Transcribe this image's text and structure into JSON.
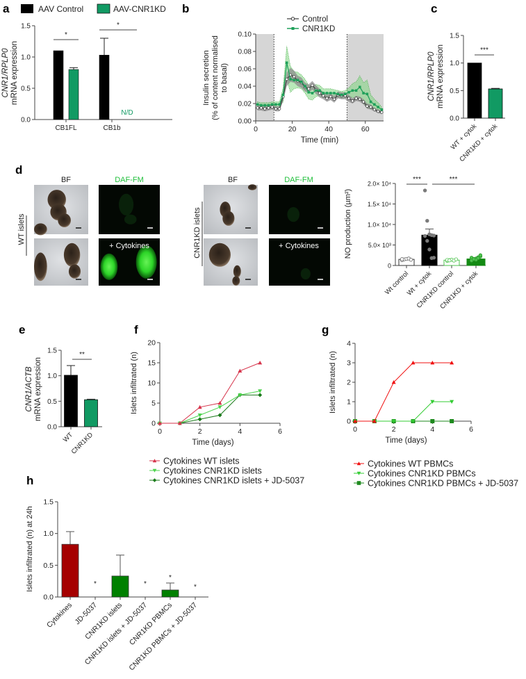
{
  "panel_labels": {
    "a": "a",
    "b": "b",
    "c": "c",
    "d": "d",
    "e": "e",
    "f": "f",
    "g": "g",
    "h": "h"
  },
  "colors": {
    "kd_green": "#119a63",
    "b_green": "#1fa05a",
    "f_red": "#d6334a",
    "f_light_green": "#4cd34c",
    "f_dark_green": "#1a7a1a",
    "g_red": "#f01010",
    "g_green": "#33cc33",
    "g_dark_green": "#1e8a1e",
    "h_red": "#a50000",
    "h_green": "#008000",
    "no_green": "#138a13",
    "no_outline_green": "#4ec34e"
  },
  "panel_d_images": {
    "bf_header": "BF",
    "daf_header": "DAF-FM",
    "treatment_label": "+ Cytokines",
    "wt_group": "WT islets",
    "kd_group": "CNR1KD islets"
  },
  "chart_data": [
    {
      "panel": "a",
      "type": "bar",
      "legend": [
        {
          "label": "AAV Control",
          "color": "#000000"
        },
        {
          "label": "AAV-CNR1KD",
          "color": "#119a63"
        }
      ],
      "ylabel_gene": "CNR1/RPLP0",
      "ylabel": "mRNA expression",
      "ylim": [
        0,
        1.5
      ],
      "yticks": [
        0,
        0.5,
        1.0,
        1.5
      ],
      "ytick_labels": [
        "0.0",
        "0.5",
        "1.0",
        "1.5"
      ],
      "categories": [
        "CB1FL",
        "CB1b"
      ],
      "series": [
        {
          "name": "AAV Control",
          "values": [
            1.1,
            1.03
          ],
          "errors": [
            0,
            0.27
          ]
        },
        {
          "name": "AAV-CNR1KD",
          "values": [
            0.8,
            null
          ],
          "errors": [
            0.03,
            null
          ]
        }
      ],
      "significance": [
        "*",
        "*"
      ],
      "not_detected_label": "N/D"
    },
    {
      "panel": "b",
      "type": "line",
      "ylabel_lines": [
        "Insulin secretion",
        "(% of content normalised",
        "to basal)"
      ],
      "xlabel": "Time (min)",
      "xlim": [
        0,
        70
      ],
      "xticks": [
        0,
        20,
        40,
        60
      ],
      "xtick_labels": [
        "0",
        "20",
        "40",
        "60"
      ],
      "ylim": [
        0,
        0.1
      ],
      "yticks": [
        0,
        0.02,
        0.04,
        0.06,
        0.08,
        0.1
      ],
      "ytick_labels": [
        "0.00",
        "0.02",
        "0.04",
        "0.06",
        "0.08",
        "0.10"
      ],
      "shaded_ranges": [
        [
          0,
          10
        ],
        [
          50,
          70
        ]
      ],
      "dotted_lines": [
        10,
        50
      ],
      "x": [
        1,
        3,
        5,
        7,
        9,
        11,
        13,
        15,
        17,
        19,
        21,
        23,
        25,
        27,
        29,
        31,
        33,
        35,
        37,
        39,
        41,
        43,
        45,
        47,
        49,
        51,
        53,
        55,
        57,
        59,
        61,
        63,
        65,
        67,
        69
      ],
      "series": [
        {
          "name": "Control",
          "values": [
            0.015,
            0.015,
            0.014,
            0.015,
            0.016,
            0.014,
            0.014,
            0.028,
            0.048,
            0.053,
            0.051,
            0.046,
            0.044,
            0.039,
            0.037,
            0.041,
            0.036,
            0.032,
            0.029,
            0.026,
            0.028,
            0.025,
            0.03,
            0.029,
            0.029,
            0.026,
            0.023,
            0.026,
            0.025,
            0.022,
            0.017,
            0.016,
            0.013,
            0.011,
            0.01
          ],
          "sem": [
            0.003,
            0.003,
            0.003,
            0.003,
            0.003,
            0.003,
            0.003,
            0.005,
            0.008,
            0.008,
            0.007,
            0.006,
            0.006,
            0.005,
            0.005,
            0.005,
            0.005,
            0.005,
            0.004,
            0.004,
            0.004,
            0.004,
            0.004,
            0.004,
            0.004,
            0.004,
            0.003,
            0.003,
            0.003,
            0.003,
            0.003,
            0.003,
            0.002,
            0.002,
            0.002
          ]
        },
        {
          "name": "CNR1KD",
          "values": [
            0.019,
            0.018,
            0.018,
            0.018,
            0.019,
            0.019,
            0.019,
            0.03,
            0.067,
            0.048,
            0.047,
            0.047,
            0.045,
            0.04,
            0.033,
            0.032,
            0.035,
            0.035,
            0.032,
            0.032,
            0.032,
            0.032,
            0.031,
            0.03,
            0.031,
            0.033,
            0.035,
            0.035,
            0.039,
            0.032,
            0.031,
            0.022,
            0.019,
            0.016,
            0.013
          ],
          "sem": [
            0.003,
            0.003,
            0.003,
            0.003,
            0.003,
            0.003,
            0.003,
            0.008,
            0.019,
            0.015,
            0.01,
            0.009,
            0.008,
            0.008,
            0.008,
            0.008,
            0.007,
            0.006,
            0.005,
            0.005,
            0.005,
            0.004,
            0.004,
            0.004,
            0.004,
            0.005,
            0.008,
            0.01,
            0.013,
            0.012,
            0.016,
            0.008,
            0.006,
            0.005,
            0.003
          ]
        }
      ]
    },
    {
      "panel": "c",
      "type": "bar",
      "ylabel_gene": "CNR1/RPLP0",
      "ylabel": "mRNA expression",
      "ylim": [
        0,
        1.5
      ],
      "yticks": [
        0,
        0.5,
        1.0,
        1.5
      ],
      "ytick_labels": [
        "0.0",
        "0.5",
        "1.0",
        "1.5"
      ],
      "categories": [
        "WT + cytok",
        "CNR1KD + cytok"
      ],
      "values": [
        1.0,
        0.53
      ],
      "errors": [
        0,
        0.01
      ],
      "significance": [
        "***"
      ]
    },
    {
      "panel": "d",
      "type": "bar",
      "ylabel": "NO production (µm²)",
      "ylim": [
        0,
        20000
      ],
      "yticks": [
        0,
        5000,
        10000,
        15000,
        20000
      ],
      "ytick_labels": [
        "0",
        "5.0× 10³",
        "1.0× 10⁴",
        "1.5× 10⁴",
        "2.0× 10⁴"
      ],
      "categories": [
        "Wt control",
        "Wt + cytok",
        "CNR1KD control",
        "CNR1KD + cytok"
      ],
      "values": [
        1500,
        7400,
        1300,
        1600
      ],
      "errors": [
        150,
        1500,
        150,
        150
      ],
      "points": [
        [
          1300,
          1500,
          1600,
          1700,
          1400,
          1550
        ],
        [
          18300,
          10900,
          7600,
          7400,
          7300,
          7200,
          6000,
          3900,
          1800,
          1900
        ],
        [
          1100,
          1300,
          1400,
          1200,
          1500,
          1350,
          1250
        ],
        [
          1300,
          1500,
          1700,
          2000,
          2200,
          1900,
          1600,
          1400,
          1800,
          2500,
          1200,
          1550
        ]
      ],
      "significance": [
        "***",
        "***"
      ]
    },
    {
      "panel": "e",
      "type": "bar",
      "ylabel_gene": "CNR1/ACTB",
      "ylabel": "mRNA expression",
      "ylim": [
        0,
        1.5
      ],
      "yticks": [
        0,
        0.5,
        1.0,
        1.5
      ],
      "ytick_labels": [
        "0.0",
        "0.5",
        "1.0",
        "1.5"
      ],
      "categories": [
        "WT",
        "CNR1KD"
      ],
      "values": [
        1.01,
        0.53
      ],
      "errors": [
        0.19,
        0.01
      ],
      "significance": [
        "**"
      ]
    },
    {
      "panel": "f",
      "type": "line",
      "ylabel": "Islets infiltrated (n)",
      "xlabel": "Time (days)",
      "xlim": [
        0,
        6
      ],
      "xticks": [
        0,
        2,
        4,
        6
      ],
      "xtick_labels": [
        "0",
        "2",
        "4",
        "6"
      ],
      "ylim": [
        0,
        20
      ],
      "yticks": [
        0,
        5,
        10,
        15,
        20
      ],
      "ytick_labels": [
        "0",
        "5",
        "10",
        "15",
        "20"
      ],
      "x": [
        0,
        1,
        2,
        3,
        4,
        5
      ],
      "series": [
        {
          "name": "Cytokines WT islets",
          "values": [
            0,
            0,
            4,
            5,
            13,
            15
          ],
          "marker": "triangle-up"
        },
        {
          "name": "Cytokines CNR1KD islets",
          "values": [
            0,
            0,
            2,
            4,
            7,
            8
          ],
          "marker": "triangle-down"
        },
        {
          "name": "Cytokines CNR1KD islets + JD-5037",
          "values": [
            0,
            0,
            1,
            2,
            7,
            7
          ],
          "marker": "diamond"
        }
      ]
    },
    {
      "panel": "g",
      "type": "line",
      "ylabel": "Islets infiltrated (n)",
      "xlabel": "Time (days)",
      "xlim": [
        0,
        6
      ],
      "xticks": [
        0,
        2,
        4,
        6
      ],
      "xtick_labels": [
        "0",
        "2",
        "4",
        "6"
      ],
      "ylim": [
        0,
        4
      ],
      "yticks": [
        0,
        1,
        2,
        3,
        4
      ],
      "ytick_labels": [
        "0",
        "1",
        "2",
        "3",
        "4"
      ],
      "x": [
        0,
        1,
        2,
        3,
        4,
        5
      ],
      "series": [
        {
          "name": "Cytokines WT PBMCs",
          "values": [
            0,
            0,
            2,
            3,
            3,
            3
          ],
          "marker": "triangle-up"
        },
        {
          "name": "Cytokines CNR1KD PBMCs",
          "values": [
            0,
            0,
            0,
            0,
            1,
            1
          ],
          "marker": "triangle-down"
        },
        {
          "name": "Cytokines CNR1KD PBMCs + JD-5037",
          "values": [
            0,
            0,
            0,
            0,
            0,
            0
          ],
          "marker": "square"
        }
      ]
    },
    {
      "panel": "h",
      "type": "bar",
      "ylabel": "Islets infiltrated (n) at 24h",
      "ylim": [
        0,
        1.5
      ],
      "yticks": [
        0,
        0.5,
        1.0,
        1.5
      ],
      "ytick_labels": [
        "0.0",
        "0.5",
        "1.0",
        "1.5"
      ],
      "categories": [
        "Cytokines",
        "JD-5037",
        "CNR1KD islets",
        "CNR1KD islets + JD-5037",
        "CNR1KD PBMCs",
        "CNR1KD PBMCs + JD-5037"
      ],
      "values": [
        0.83,
        0,
        0.33,
        0,
        0.11,
        0
      ],
      "errors": [
        0.2,
        0,
        0.33,
        0,
        0.11,
        0
      ],
      "significance": [
        "",
        "*",
        "",
        "*",
        "*",
        "*"
      ]
    }
  ]
}
